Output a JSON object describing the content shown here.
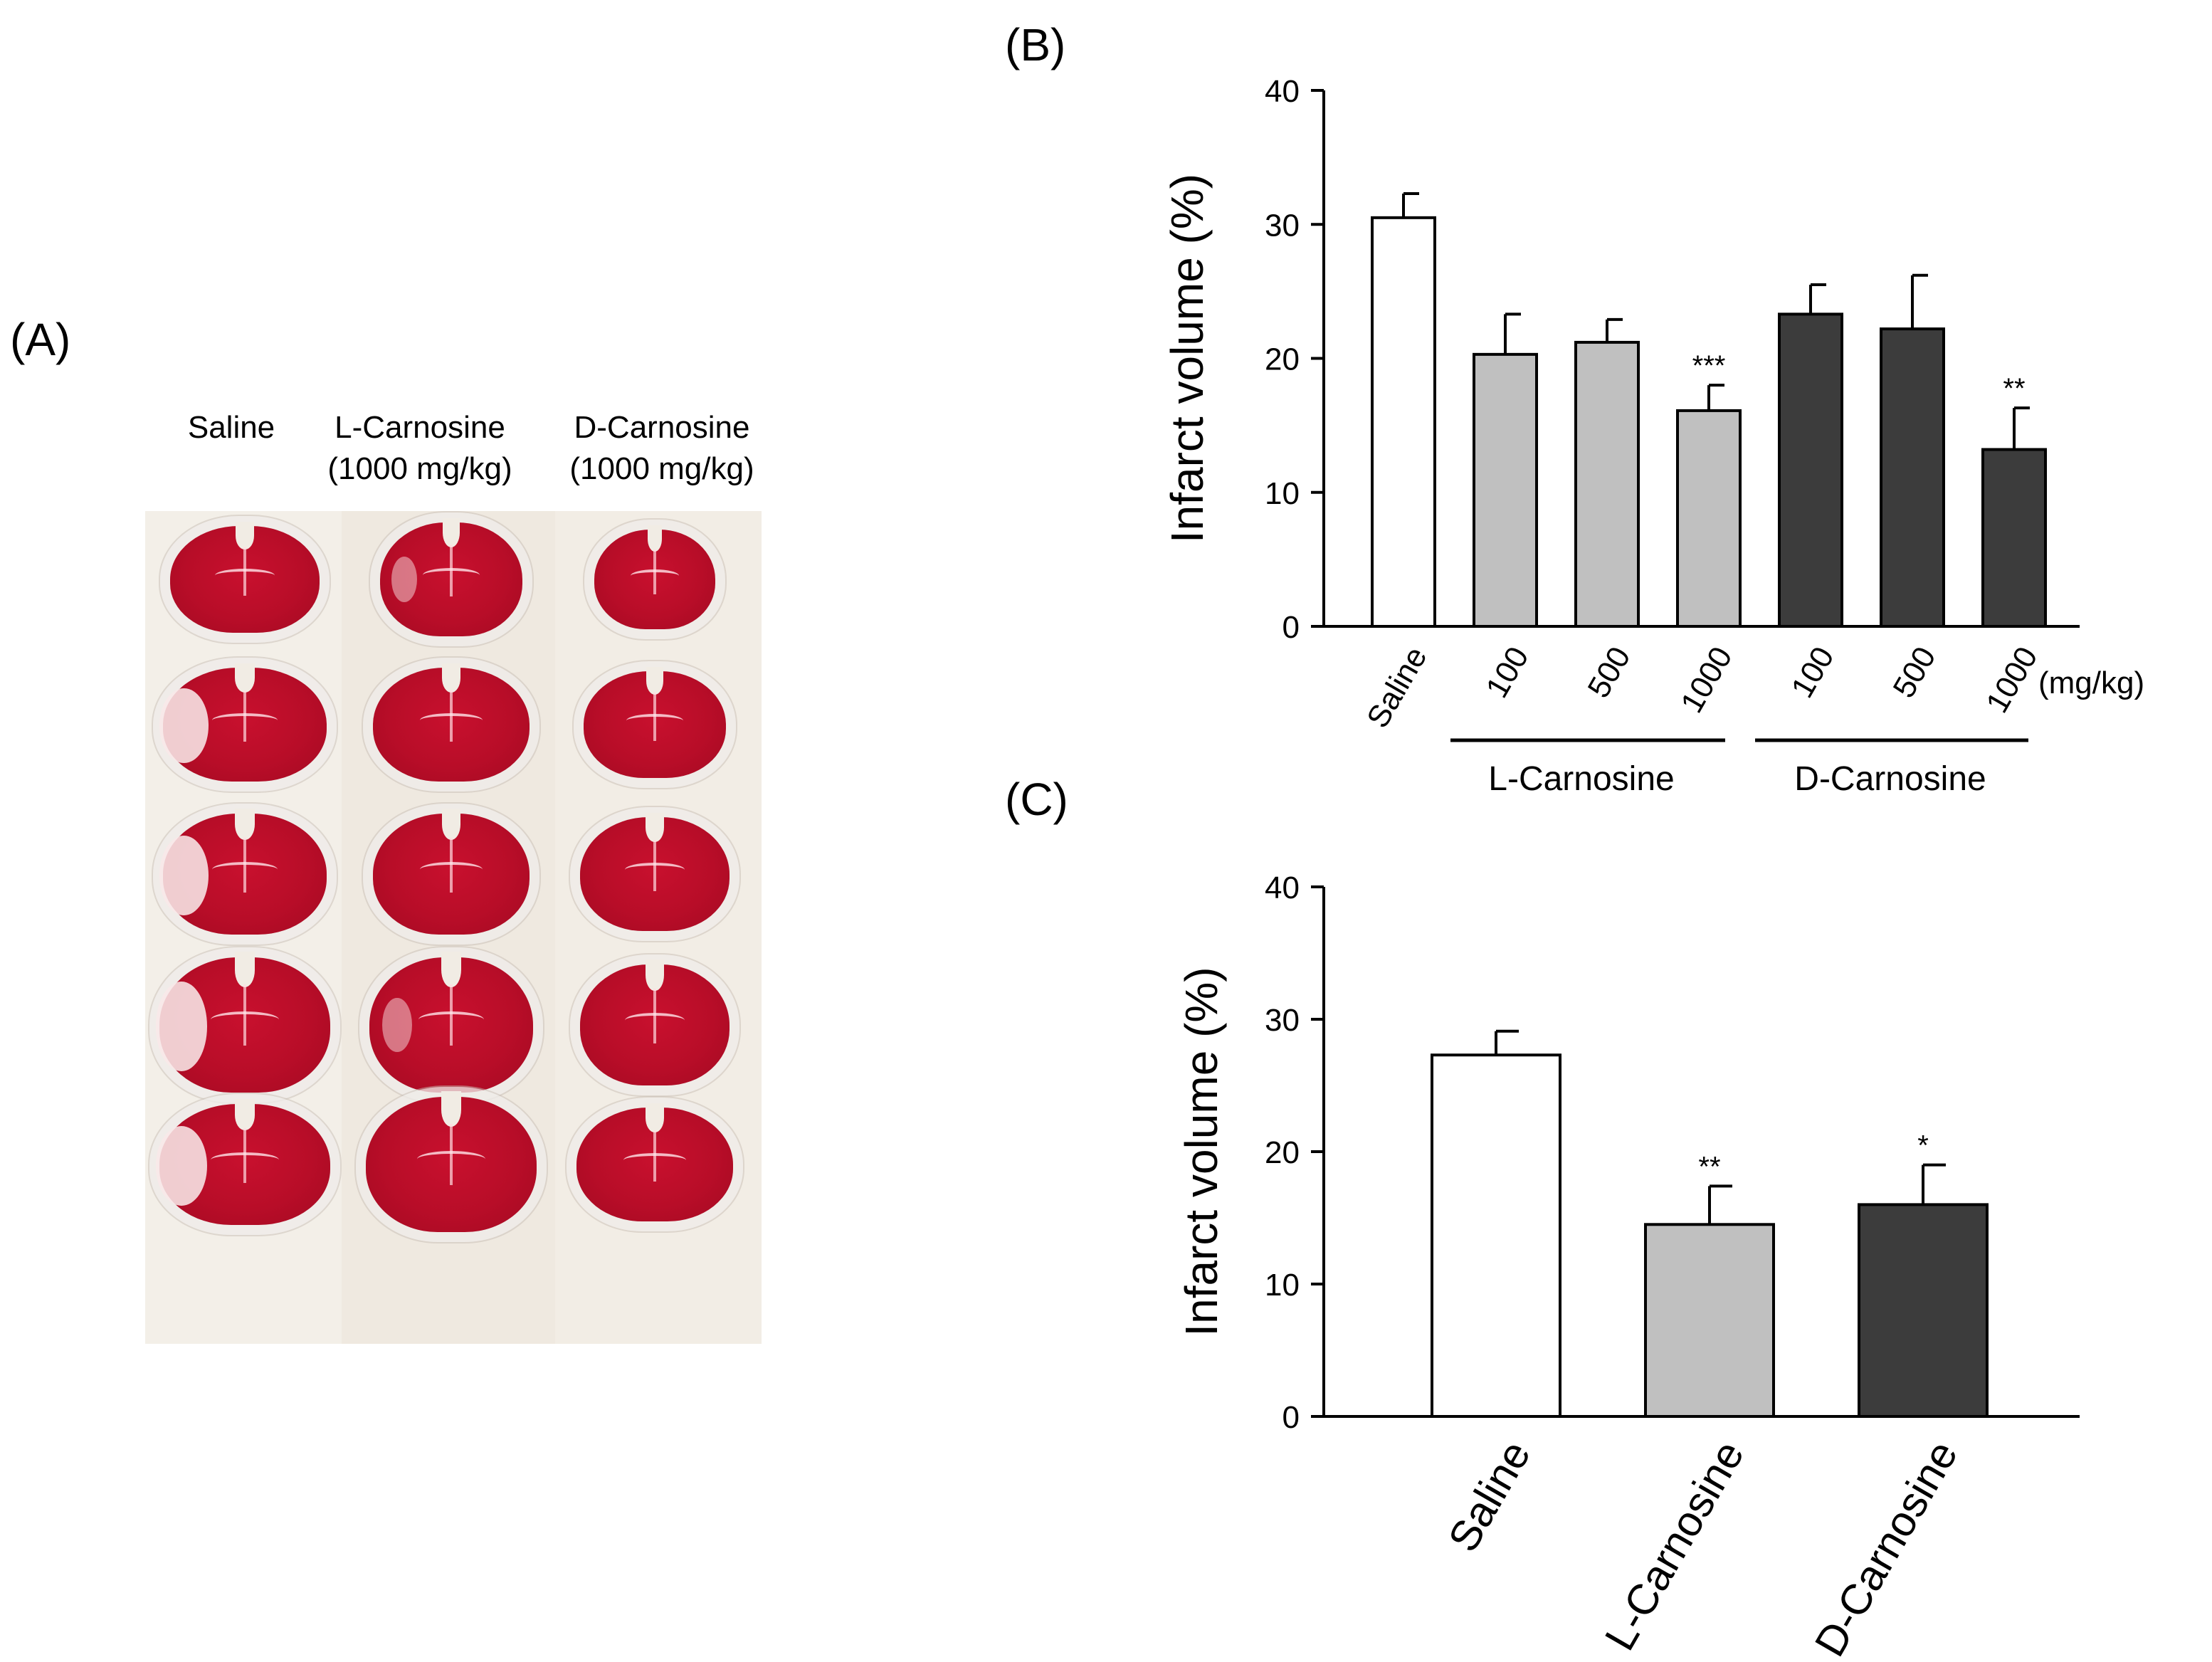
{
  "panel_a": {
    "label": "(A)",
    "columns": [
      {
        "name": "Saline",
        "dose": ""
      },
      {
        "name": "L-Carnosine",
        "dose": "(1000 mg/kg)"
      },
      {
        "name": "D-Carnosine",
        "dose": "(1000 mg/kg)"
      }
    ]
  },
  "chart_data": [
    {
      "panel_label": "(B)",
      "type": "bar",
      "ylabel": "Infarct volume (%)",
      "ylim": [
        0,
        40
      ],
      "yticks": [
        0,
        10,
        20,
        30,
        40
      ],
      "unit_label": "(mg/kg)",
      "categories": [
        "Saline",
        "100",
        "500",
        "1000",
        "100",
        "500",
        "1000"
      ],
      "values": [
        30.5,
        20.3,
        21.2,
        16.1,
        23.3,
        22.2,
        13.2
      ],
      "errors": [
        1.8,
        3.0,
        1.7,
        1.9,
        2.2,
        4.0,
        3.1
      ],
      "significance": [
        "",
        "",
        "",
        "***",
        "",
        "",
        "**"
      ],
      "fill_colors": [
        "#ffffff",
        "#c0c0c0",
        "#c0c0c0",
        "#c0c0c0",
        "#3c3c3c",
        "#3c3c3c",
        "#3c3c3c"
      ],
      "groups": [
        {
          "name": "L-Carnosine",
          "categories": [
            "100",
            "500",
            "1000"
          ]
        },
        {
          "name": "D-Carnosine",
          "categories": [
            "100",
            "500",
            "1000"
          ]
        }
      ]
    },
    {
      "panel_label": "(C)",
      "type": "bar",
      "ylabel": "Infarct volume (%)",
      "ylim": [
        0,
        40
      ],
      "yticks": [
        0,
        10,
        20,
        30,
        40
      ],
      "categories": [
        "Saline",
        "L-Carnosine",
        "D-Carnosine"
      ],
      "values": [
        27.3,
        14.5,
        16.0
      ],
      "errors": [
        1.8,
        2.9,
        3.0
      ],
      "significance": [
        "",
        "**",
        "*"
      ],
      "fill_colors": [
        "#ffffff",
        "#c0c0c0",
        "#3c3c3c"
      ]
    }
  ]
}
